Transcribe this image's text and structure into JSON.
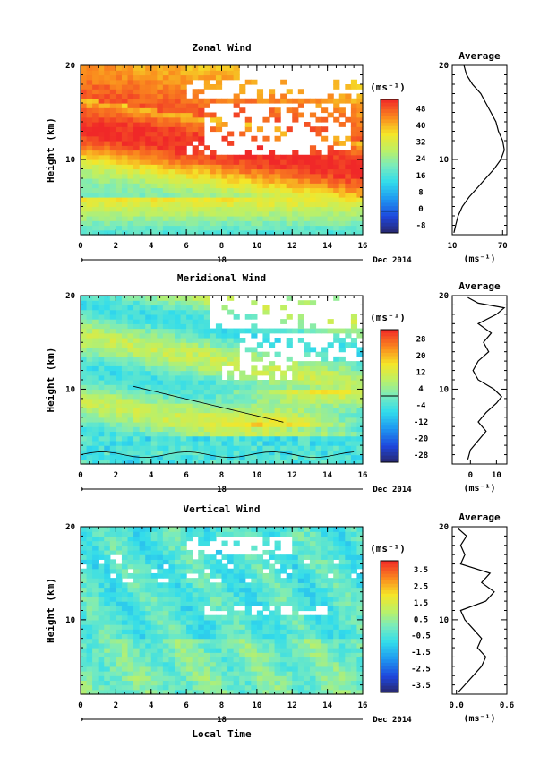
{
  "figure": {
    "date_label": "Dec 2014",
    "day_label": "18",
    "xlabel_bottom": "Local Time",
    "unit_label": "(ms⁻¹)",
    "average_title": "Average"
  },
  "chart_data": [
    {
      "type": "heatmap",
      "title": "Zonal Wind",
      "xlabel": "",
      "ylabel": "Height (km)",
      "xlim": [
        0,
        16
      ],
      "ylim": [
        2,
        20
      ],
      "xticks": [
        0,
        2,
        4,
        6,
        8,
        10,
        12,
        14,
        16
      ],
      "yticks": [
        10,
        20
      ],
      "colorbar_ticks": [
        "48",
        "40",
        "32",
        "24",
        "16",
        "8",
        "0",
        "-8"
      ],
      "colorbar_range": [
        -10,
        50
      ],
      "profile": {
        "title": "Average",
        "xlim": [
          10,
          75
        ],
        "xticks": [
          "10",
          "70"
        ],
        "xlabel": "(ms⁻¹)",
        "points": [
          [
            12,
            2.2
          ],
          [
            14,
            3
          ],
          [
            17,
            4
          ],
          [
            22,
            5
          ],
          [
            30,
            6
          ],
          [
            40,
            7
          ],
          [
            50,
            8
          ],
          [
            60,
            9
          ],
          [
            68,
            10
          ],
          [
            72,
            11
          ],
          [
            70,
            12
          ],
          [
            65,
            13
          ],
          [
            62,
            14
          ],
          [
            56,
            15
          ],
          [
            50,
            16
          ],
          [
            44,
            17
          ],
          [
            34,
            18
          ],
          [
            27,
            19
          ],
          [
            24,
            20
          ]
        ]
      }
    },
    {
      "type": "heatmap",
      "title": "Meridional Wind",
      "xlabel": "",
      "ylabel": "Height (km)",
      "xlim": [
        0,
        16
      ],
      "ylim": [
        2,
        20
      ],
      "xticks": [
        0,
        2,
        4,
        6,
        8,
        10,
        12,
        14,
        16
      ],
      "yticks": [
        10,
        20
      ],
      "colorbar_ticks": [
        "28",
        "20",
        "12",
        "4",
        "-4",
        "-12",
        "-20",
        "-28"
      ],
      "colorbar_range": [
        -32,
        32
      ],
      "profile": {
        "title": "Average",
        "xlim": [
          -7,
          14
        ],
        "xticks": [
          "0",
          "10"
        ],
        "xlabel": "(ms⁻¹)",
        "points": [
          [
            -1,
            2.5
          ],
          [
            0,
            3.5
          ],
          [
            3,
            4.5
          ],
          [
            6,
            5.5
          ],
          [
            3,
            6.5
          ],
          [
            6,
            7.5
          ],
          [
            10,
            8.5
          ],
          [
            12,
            9.2
          ],
          [
            9,
            10
          ],
          [
            3,
            11
          ],
          [
            1,
            12
          ],
          [
            3,
            13
          ],
          [
            7,
            14
          ],
          [
            5,
            15
          ],
          [
            8,
            16
          ],
          [
            3,
            17
          ],
          [
            10,
            18
          ],
          [
            13,
            18.7
          ],
          [
            3,
            19.2
          ],
          [
            -1,
            19.8
          ]
        ]
      }
    },
    {
      "type": "heatmap",
      "title": "Vertical Wind",
      "xlabel": "Local Time",
      "ylabel": "Height (km)",
      "xlim": [
        0,
        16
      ],
      "ylim": [
        2,
        20
      ],
      "xticks": [
        0,
        2,
        4,
        6,
        8,
        10,
        12,
        14,
        16
      ],
      "yticks": [
        10,
        20
      ],
      "colorbar_ticks": [
        "3.5",
        "2.5",
        "1.5",
        "0.5",
        "-0.5",
        "-1.5",
        "-2.5",
        "-3.5"
      ],
      "colorbar_range": [
        -4,
        4
      ],
      "profile": {
        "title": "Average",
        "xlim": [
          -0.05,
          0.6
        ],
        "xticks": [
          "0.0",
          "0.6"
        ],
        "xlabel": "(ms⁻¹)",
        "points": [
          [
            0.02,
            2.2
          ],
          [
            0.1,
            3
          ],
          [
            0.2,
            4
          ],
          [
            0.3,
            5
          ],
          [
            0.35,
            6
          ],
          [
            0.25,
            7
          ],
          [
            0.3,
            8
          ],
          [
            0.2,
            9
          ],
          [
            0.1,
            10
          ],
          [
            0.05,
            11
          ],
          [
            0.35,
            12
          ],
          [
            0.45,
            13
          ],
          [
            0.3,
            14
          ],
          [
            0.4,
            15
          ],
          [
            0.05,
            16
          ],
          [
            0.1,
            17
          ],
          [
            0.05,
            18
          ],
          [
            0.12,
            19
          ],
          [
            0.02,
            19.8
          ]
        ]
      }
    }
  ]
}
